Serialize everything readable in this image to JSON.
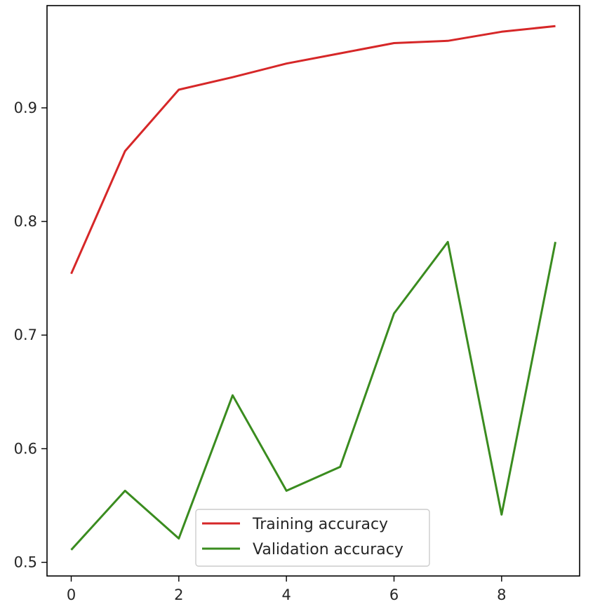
{
  "chart_data": {
    "type": "line",
    "title": "",
    "xlabel": "",
    "ylabel": "",
    "x": [
      0,
      1,
      2,
      3,
      4,
      5,
      6,
      7,
      8,
      9
    ],
    "xlim": [
      -0.45,
      9.45
    ],
    "ylim": [
      0.488,
      0.99
    ],
    "xticks": [
      0,
      2,
      4,
      6,
      8
    ],
    "yticks": [
      0.5,
      0.6,
      0.7,
      0.8,
      0.9
    ],
    "xtick_labels": [
      "0",
      "2",
      "4",
      "6",
      "8"
    ],
    "ytick_labels": [
      "0.5",
      "0.6",
      "0.7",
      "0.8",
      "0.9"
    ],
    "grid": false,
    "legend_position": "lower-center",
    "series": [
      {
        "name": "Training accuracy",
        "color": "#d62728",
        "values": [
          0.754,
          0.862,
          0.916,
          0.927,
          0.939,
          0.948,
          0.957,
          0.959,
          0.967,
          0.972
        ]
      },
      {
        "name": "Validation accuracy",
        "color": "#3a8c1f",
        "values": [
          0.511,
          0.563,
          0.521,
          0.647,
          0.563,
          0.584,
          0.719,
          0.782,
          0.542,
          0.782
        ]
      }
    ]
  }
}
